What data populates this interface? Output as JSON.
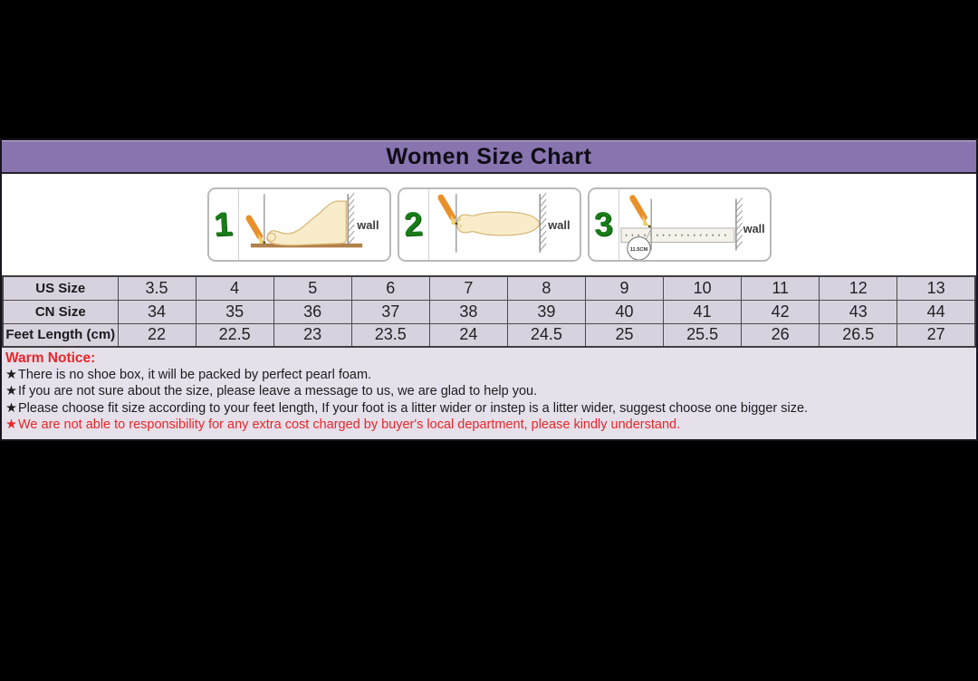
{
  "header": {
    "title": "Women Size Chart"
  },
  "measure_steps": [
    {
      "number": "1",
      "wall_label": "wall"
    },
    {
      "number": "2",
      "wall_label": "wall"
    },
    {
      "number": "3",
      "wall_label": "wall",
      "measure_label": "11.5CM"
    }
  ],
  "size_table": {
    "rows": [
      {
        "header": "US Size",
        "values": [
          "3.5",
          "4",
          "5",
          "6",
          "7",
          "8",
          "9",
          "10",
          "11",
          "12",
          "13"
        ]
      },
      {
        "header": "CN Size",
        "values": [
          "34",
          "35",
          "36",
          "37",
          "38",
          "39",
          "40",
          "41",
          "42",
          "43",
          "44"
        ]
      },
      {
        "header": "Feet Length (cm)",
        "values": [
          "22",
          "22.5",
          "23",
          "23.5",
          "24",
          "24.5",
          "25",
          "25.5",
          "26",
          "26.5",
          "27"
        ]
      }
    ]
  },
  "notice": {
    "title": "Warm Notice:",
    "items": [
      {
        "bullet": "★",
        "style": "dark",
        "text": "There is no shoe box, it will be packed by perfect pearl foam."
      },
      {
        "bullet": "★",
        "style": "dark",
        "text": "If you are not sure about the size, please leave a message to us, we are glad to help you."
      },
      {
        "bullet": "★",
        "style": "dark",
        "text": "Please choose fit size according to your feet length, If your foot is a litter wider or instep is a litter wider, suggest choose one bigger size."
      },
      {
        "bullet": "★",
        "style": "red",
        "text": "We are not able to responsibility for any extra cost charged by buyer's local department, please kindly understand."
      }
    ]
  },
  "colors": {
    "title_bar_purple": "#8874af",
    "table_cell_lavender": "#d8d2df",
    "notice_lavender": "#e5e0ea",
    "notice_red": "#e8262a",
    "step_digit_green": "#187d18",
    "pencil_orange": "#e8912c",
    "foot_fill": "#f8ecca",
    "background_black": "#000000"
  }
}
